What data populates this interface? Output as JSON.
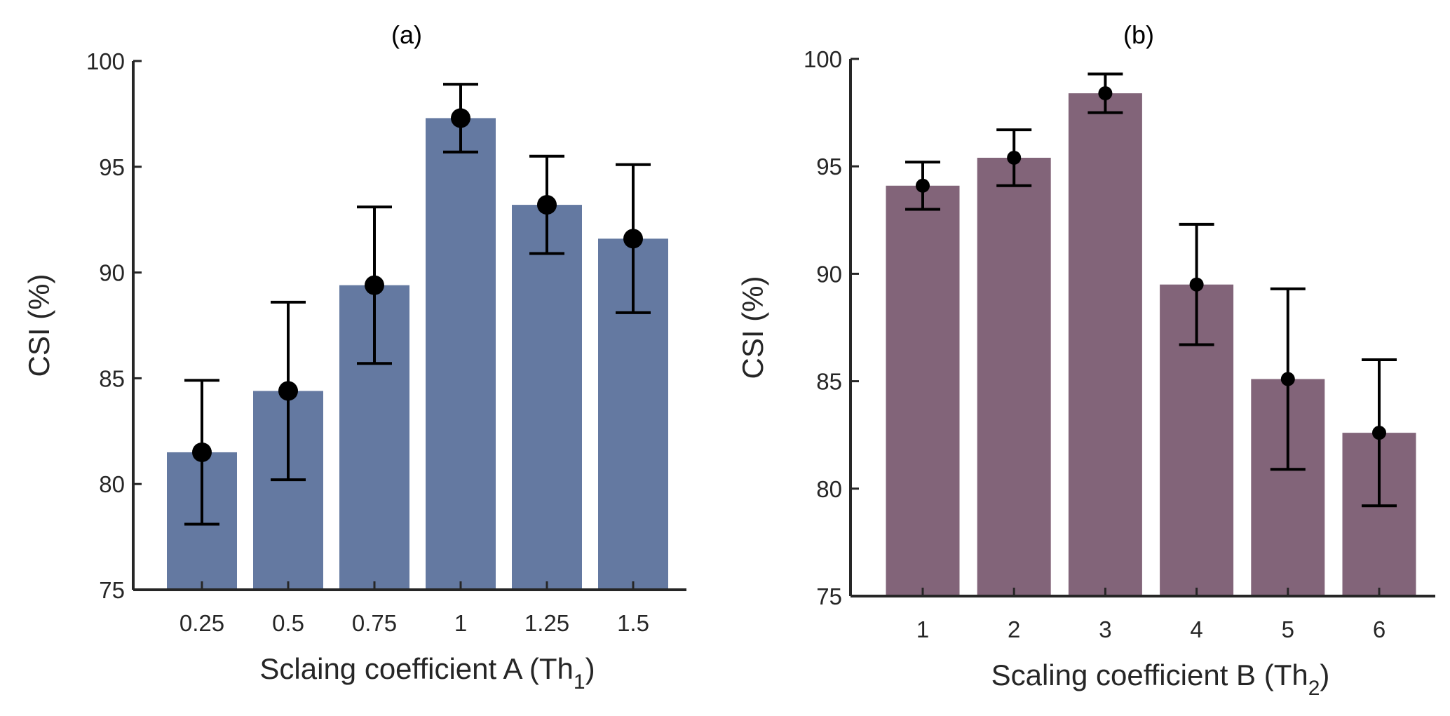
{
  "chart_data": [
    {
      "type": "bar",
      "title": "(a)",
      "xlabel": "Sclaing coefficient A (Th",
      "xlabel_sub": "1",
      "xlabel_end": ")",
      "ylabel": "CSI (%)",
      "ylim": [
        75,
        100
      ],
      "yticks": [
        "75",
        "80",
        "85",
        "90",
        "95",
        "100"
      ],
      "categories": [
        "0.25",
        "0.5",
        "0.75",
        "1",
        "1.25",
        "1.5"
      ],
      "values": [
        81.5,
        84.4,
        89.4,
        97.3,
        93.2,
        91.6
      ],
      "error_low": [
        78.1,
        80.2,
        85.7,
        95.7,
        90.9,
        88.1
      ],
      "error_high": [
        84.9,
        88.6,
        93.1,
        98.9,
        95.5,
        95.1
      ],
      "color": "#6479a1"
    },
    {
      "type": "bar",
      "title": "(b)",
      "xlabel": "Scaling coefficient B (Th",
      "xlabel_sub": "2",
      "xlabel_end": ")",
      "ylabel": "CSI (%)",
      "ylim": [
        75,
        100
      ],
      "yticks": [
        "75",
        "80",
        "85",
        "90",
        "95",
        "100"
      ],
      "categories": [
        "1",
        "2",
        "3",
        "4",
        "5",
        "6"
      ],
      "values": [
        94.1,
        95.4,
        98.4,
        89.5,
        85.1,
        82.6
      ],
      "error_low": [
        93.0,
        94.1,
        97.5,
        86.7,
        80.9,
        79.2
      ],
      "error_high": [
        95.2,
        96.7,
        99.3,
        92.3,
        89.3,
        86.0
      ],
      "color": "#826479"
    }
  ]
}
